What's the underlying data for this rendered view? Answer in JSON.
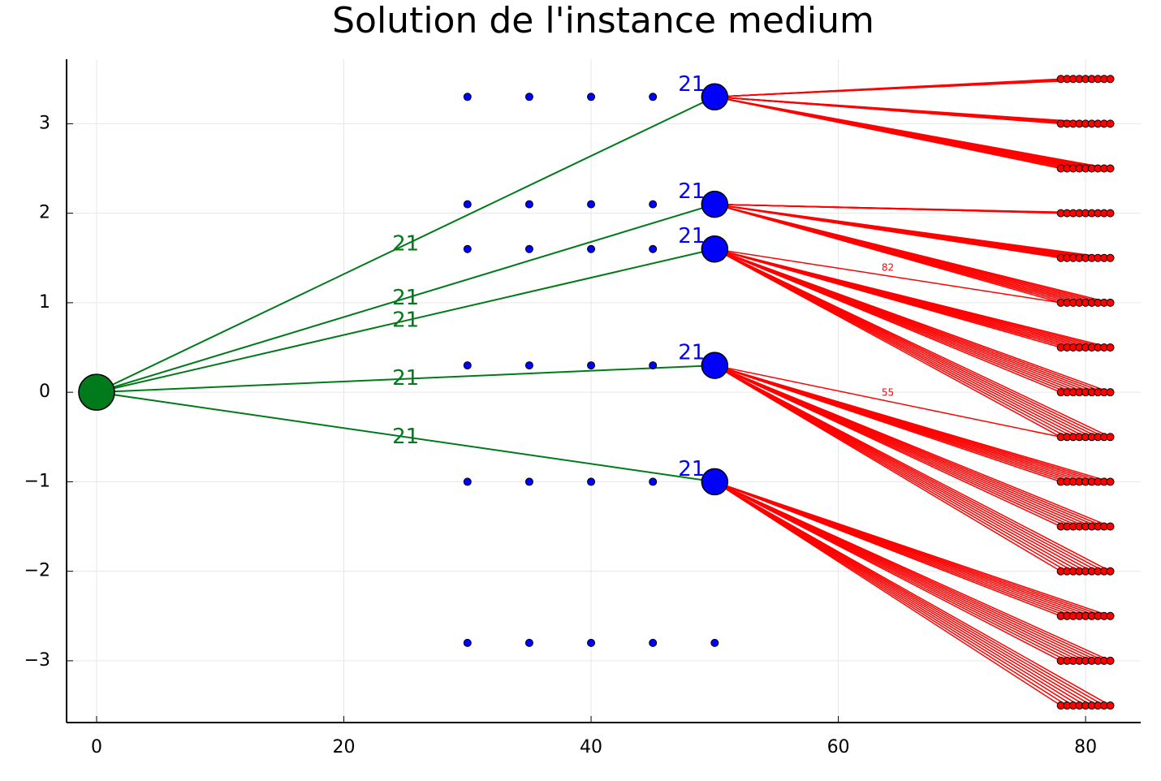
{
  "chart_data": {
    "type": "network",
    "title": "Solution de l'instance medium",
    "xlim": [
      -2.43,
      84.46
    ],
    "ylim": [
      -3.69,
      3.72
    ],
    "xticks": [
      0,
      20,
      40,
      60,
      80
    ],
    "yticks": [
      {
        "value": -3,
        "label": "−3"
      },
      {
        "value": -2,
        "label": "−2"
      },
      {
        "value": -1,
        "label": "−1"
      },
      0,
      1,
      2,
      3
    ],
    "grid": true,
    "depot": {
      "x": 0,
      "y": 0,
      "color": "#007a1a"
    },
    "sites": {
      "color": "#0000ff",
      "x": [
        30,
        35,
        40,
        45,
        30,
        35,
        40,
        45,
        30,
        35,
        40,
        45,
        30,
        35,
        40,
        45,
        30,
        35,
        40,
        45,
        30,
        35,
        40,
        45,
        50
      ],
      "y": [
        3.3,
        3.3,
        3.3,
        3.3,
        2.1,
        2.1,
        2.1,
        2.1,
        1.6,
        1.6,
        1.6,
        1.6,
        0.3,
        0.3,
        0.3,
        0.3,
        -1,
        -1,
        -1,
        -1,
        -2.8,
        -2.8,
        -2.8,
        -2.8,
        -2.8
      ]
    },
    "hubs": {
      "color": "#0000ff",
      "edge_color": "#007a1a",
      "link_color": "#ff0000",
      "items": [
        {
          "x": 50,
          "y": 3.3,
          "label": "21",
          "edge_label": "21",
          "serves": [
            0,
            1,
            2
          ]
        },
        {
          "x": 50,
          "y": 2.1,
          "label": "21",
          "edge_label": "21",
          "serves": [
            3,
            4,
            5
          ]
        },
        {
          "x": 50,
          "y": 1.6,
          "label": "21",
          "edge_label": "21",
          "serves": [
            6,
            7,
            8
          ],
          "single_edge": {
            "y_index": 5,
            "x_index": 0,
            "label": "82"
          }
        },
        {
          "x": 50,
          "y": 0.3,
          "label": "21",
          "edge_label": "21",
          "serves": [
            9,
            10,
            11
          ],
          "single_edge": {
            "y_index": 8,
            "x_index": 0,
            "label": "55"
          }
        },
        {
          "x": 50,
          "y": -1,
          "label": "21",
          "edge_label": "21",
          "serves": [
            12,
            13,
            14
          ]
        }
      ]
    },
    "customers": {
      "color": "#ff0000",
      "x": [
        78,
        78.5,
        79,
        79.5,
        80,
        80.5,
        81,
        81.5,
        82
      ],
      "y": [
        3.5,
        3,
        2.5,
        2,
        1.5,
        1,
        0.5,
        0,
        -0.5,
        -1,
        -1.5,
        -2,
        -2.5,
        -3,
        -3.5
      ]
    }
  }
}
